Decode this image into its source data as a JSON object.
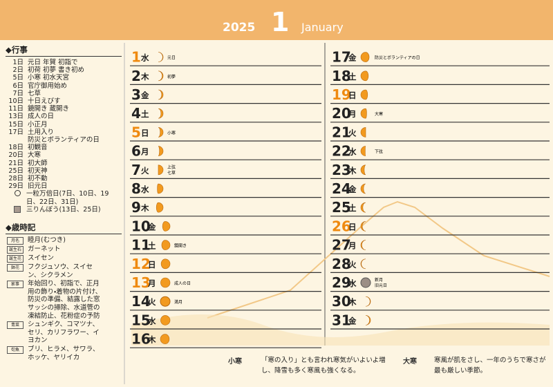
{
  "header": {
    "year": "2025",
    "month": "1",
    "month_name": "January"
  },
  "events": {
    "title": "◆行事",
    "items": [
      [
        "1日",
        "元日 年賀 初詣で"
      ],
      [
        "2日",
        "初荷 初夢 書き初め"
      ],
      [
        "5日",
        "小寒 初水天宮"
      ],
      [
        "6日",
        "官庁御用始め"
      ],
      [
        "7日",
        "七草"
      ],
      [
        "10日",
        "十日えびす"
      ],
      [
        "11日",
        "鏡開き 蔵開き"
      ],
      [
        "13日",
        "成人の日"
      ],
      [
        "15日",
        "小正月"
      ],
      [
        "17日",
        "土用入り"
      ],
      [
        "",
        "防災とボランティアの日"
      ],
      [
        "18日",
        "初観音"
      ],
      [
        "20日",
        "大寒"
      ],
      [
        "21日",
        "初大師"
      ],
      [
        "25日",
        "初天神"
      ],
      [
        "28日",
        "初不動"
      ],
      [
        "29日",
        "旧元日"
      ]
    ],
    "legend": [
      "一粒万倍日(7日、10日、19日、22日、31日)",
      "三りんぼう(13日、25日)"
    ]
  },
  "almanac": {
    "title": "◆歳時記",
    "items": [
      [
        "月名",
        "睦月(むつき)"
      ],
      [
        "誕生石",
        "ガーネット"
      ],
      [
        "誕生花",
        "スイセン"
      ],
      [
        "鉢花",
        "フクジュソウ、スイセン、シクラメン"
      ],
      [
        "家事",
        "年始回り、初詣で、正月用の飾り・着物の片付け、防災の準備、結露した窓サッシの掃除、水道管の凍結防止、花粉症の予防"
      ],
      [
        "青菜",
        "シュンギク、コマツナ、セリ、カリフラワー、イヨカン"
      ],
      [
        "旬魚",
        "ブリ、ヒラメ、サワラ、ホッケ、ヤリイカ"
      ]
    ]
  },
  "days": [
    {
      "day": 1,
      "weekday": "水",
      "notes": [
        "元日"
      ],
      "highlight": true
    },
    {
      "day": 2,
      "weekday": "木",
      "notes": [
        "初夢"
      ]
    },
    {
      "day": 3,
      "weekday": "金",
      "notes": []
    },
    {
      "day": 4,
      "weekday": "土",
      "notes": []
    },
    {
      "day": 5,
      "weekday": "日",
      "notes": [
        "小寒"
      ],
      "highlight": true
    },
    {
      "day": 6,
      "weekday": "月",
      "notes": []
    },
    {
      "day": 7,
      "weekday": "火",
      "notes": [
        "上弦",
        "七草"
      ]
    },
    {
      "day": 8,
      "weekday": "水",
      "notes": []
    },
    {
      "day": 9,
      "weekday": "木",
      "notes": []
    },
    {
      "day": 10,
      "weekday": "金",
      "notes": []
    },
    {
      "day": 11,
      "weekday": "土",
      "notes": [
        "鏡開き"
      ]
    },
    {
      "day": 12,
      "weekday": "日",
      "notes": [],
      "highlight": true
    },
    {
      "day": 13,
      "weekday": "月",
      "notes": [
        "成人の日"
      ],
      "highlight": true
    },
    {
      "day": 14,
      "weekday": "火",
      "notes": [
        "満月"
      ]
    },
    {
      "day": 15,
      "weekday": "水",
      "notes": []
    },
    {
      "day": 16,
      "weekday": "木",
      "notes": []
    },
    {
      "day": 17,
      "weekday": "金",
      "notes": [
        "防災とボランティアの日"
      ]
    },
    {
      "day": 18,
      "weekday": "土",
      "notes": []
    },
    {
      "day": 19,
      "weekday": "日",
      "notes": [],
      "highlight": true
    },
    {
      "day": 20,
      "weekday": "月",
      "notes": [
        "大寒"
      ]
    },
    {
      "day": 21,
      "weekday": "火",
      "notes": []
    },
    {
      "day": 22,
      "weekday": "水",
      "notes": [
        "下弦"
      ]
    },
    {
      "day": 23,
      "weekday": "木",
      "notes": []
    },
    {
      "day": 24,
      "weekday": "金",
      "notes": []
    },
    {
      "day": 25,
      "weekday": "土",
      "notes": []
    },
    {
      "day": 26,
      "weekday": "日",
      "notes": [],
      "highlight": true
    },
    {
      "day": 27,
      "weekday": "月",
      "notes": []
    },
    {
      "day": 28,
      "weekday": "火",
      "notes": []
    },
    {
      "day": 29,
      "weekday": "水",
      "notes": [
        "新月",
        "旧元日"
      ]
    },
    {
      "day": 30,
      "weekday": "木",
      "notes": []
    },
    {
      "day": 31,
      "weekday": "金",
      "notes": []
    }
  ],
  "notes": [
    {
      "label": "小寒",
      "text": "「寒の入り」とも言われ寒気がいよいよ増し、降雪も多く寒風も強くなる。"
    },
    {
      "label": "大寒",
      "text": "寒風が肌をさし、一年のうちで寒さが最も厳しい季節。"
    }
  ]
}
